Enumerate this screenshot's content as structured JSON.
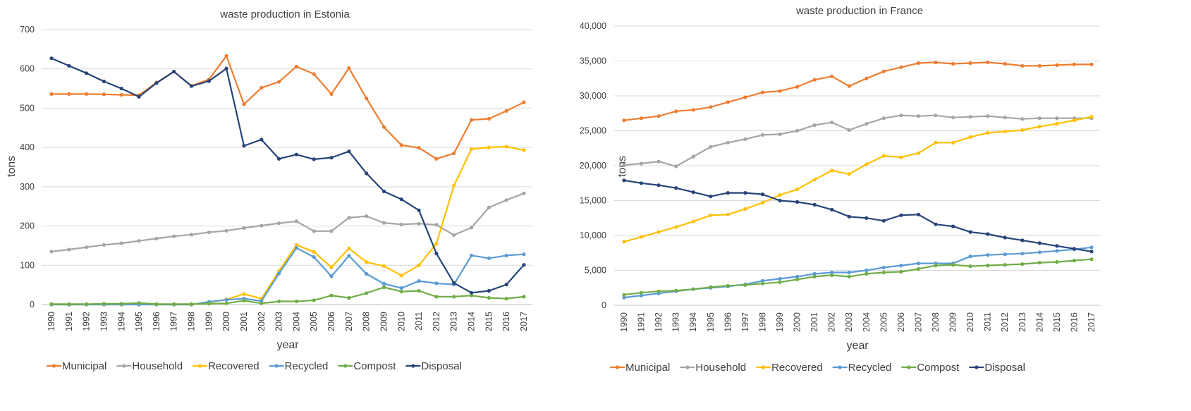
{
  "chart_data": [
    {
      "type": "line",
      "title": "waste production in Estonia",
      "xlabel": "year",
      "ylabel": "tons",
      "ylim": [
        0,
        700
      ],
      "yticks": [
        0,
        100,
        200,
        300,
        400,
        500,
        600,
        700
      ],
      "ytick_labels": [
        "0",
        "100",
        "200",
        "300",
        "400",
        "500",
        "600",
        "700"
      ],
      "grid": true,
      "legend": "bottom",
      "x": [
        "1990",
        "1991",
        "1992",
        "1993",
        "1994",
        "1995",
        "1996",
        "1997",
        "1998",
        "1999",
        "2000",
        "2001",
        "2002",
        "2003",
        "2004",
        "2005",
        "2006",
        "2007",
        "2008",
        "2009",
        "2010",
        "2011",
        "2012",
        "2013",
        "2014",
        "2015",
        "2016",
        "2017"
      ],
      "series": [
        {
          "name": "Municipal",
          "color": "#ed7d31",
          "values": [
            536,
            536,
            536,
            535,
            534,
            533,
            565,
            593,
            557,
            573,
            633,
            510,
            552,
            567,
            606,
            587,
            536,
            602,
            525,
            452,
            406,
            399,
            371,
            385,
            470,
            473,
            493,
            515
          ]
        },
        {
          "name": "Household",
          "color": "#a5a5a5",
          "values": [
            135,
            140,
            146,
            152,
            156,
            162,
            168,
            174,
            178,
            184,
            188,
            195,
            201,
            207,
            212,
            187,
            187,
            221,
            225,
            208,
            204,
            206,
            203,
            177,
            196,
            247,
            266,
            283
          ]
        },
        {
          "name": "Recovered",
          "color": "#ffc000",
          "values": [
            0,
            0,
            0,
            0,
            0,
            0,
            0,
            0,
            0,
            5,
            13,
            27,
            15,
            85,
            152,
            134,
            95,
            143,
            108,
            98,
            74,
            100,
            155,
            303,
            396,
            400,
            402,
            393
          ]
        },
        {
          "name": "Recycled",
          "color": "#5b9bd5",
          "values": [
            0,
            0,
            0,
            0,
            0,
            0,
            0,
            0,
            0,
            7,
            12,
            15,
            9,
            79,
            144,
            121,
            72,
            124,
            78,
            53,
            42,
            60,
            54,
            51,
            125,
            118,
            125,
            128
          ]
        },
        {
          "name": "Compost",
          "color": "#70ad47",
          "values": [
            1,
            1,
            1,
            2,
            2,
            4,
            1,
            1,
            1,
            2,
            3,
            10,
            3,
            8,
            8,
            11,
            23,
            17,
            29,
            44,
            33,
            35,
            20,
            20,
            23,
            17,
            15,
            20
          ]
        },
        {
          "name": "Disposal",
          "color": "#264478",
          "values": [
            627,
            608,
            589,
            568,
            550,
            529,
            564,
            593,
            556,
            569,
            601,
            404,
            420,
            371,
            382,
            370,
            374,
            390,
            334,
            288,
            268,
            240,
            130,
            55,
            30,
            35,
            51,
            101
          ]
        }
      ]
    },
    {
      "type": "line",
      "title": "waste production in France",
      "xlabel": "year",
      "ylabel": "tons",
      "ylim": [
        0,
        40000
      ],
      "yticks": [
        0,
        5000,
        10000,
        15000,
        20000,
        25000,
        30000,
        35000,
        40000
      ],
      "ytick_labels": [
        "0",
        "5,000",
        "10,000",
        "15,000",
        "20,000",
        "25,000",
        "30,000",
        "35,000",
        "40,000"
      ],
      "grid": true,
      "legend": "bottom",
      "x": [
        "1990",
        "1991",
        "1992",
        "1993",
        "1994",
        "1995",
        "1996",
        "1997",
        "1998",
        "1999",
        "2000",
        "2001",
        "2002",
        "2003",
        "2004",
        "2005",
        "2006",
        "2007",
        "2008",
        "2009",
        "2010",
        "2011",
        "2012",
        "2013",
        "2014",
        "2015",
        "2016",
        "2017"
      ],
      "series": [
        {
          "name": "Municipal",
          "color": "#ed7d31",
          "values": [
            26500,
            26800,
            27100,
            27800,
            28000,
            28400,
            29100,
            29800,
            30500,
            30700,
            31300,
            32300,
            32800,
            31400,
            32500,
            33500,
            34100,
            34700,
            34800,
            34600,
            34700,
            34800,
            34600,
            34300,
            34300,
            34400,
            34500,
            34500
          ]
        },
        {
          "name": "Household",
          "color": "#a5a5a5",
          "values": [
            20100,
            20300,
            20600,
            19900,
            21300,
            22700,
            23300,
            23800,
            24400,
            24500,
            25000,
            25800,
            26200,
            25100,
            26000,
            26800,
            27200,
            27100,
            27200,
            26900,
            27000,
            27100,
            26900,
            26700,
            26800,
            26800,
            26800,
            26800
          ]
        },
        {
          "name": "Recovered",
          "color": "#ffc000",
          "values": [
            9100,
            9800,
            10500,
            11200,
            12000,
            12900,
            13000,
            13800,
            14700,
            15800,
            16600,
            18000,
            19300,
            18800,
            20200,
            21400,
            21200,
            21800,
            23300,
            23300,
            24100,
            24700,
            24900,
            25100,
            25600,
            26000,
            26500,
            27000
          ]
        },
        {
          "name": "Recycled",
          "color": "#5b9bd5",
          "values": [
            1100,
            1400,
            1700,
            2000,
            2300,
            2500,
            2700,
            3000,
            3500,
            3800,
            4100,
            4500,
            4700,
            4700,
            5000,
            5400,
            5700,
            6000,
            6000,
            6000,
            7000,
            7200,
            7300,
            7400,
            7600,
            7800,
            8000,
            8300
          ]
        },
        {
          "name": "Compost",
          "color": "#70ad47",
          "values": [
            1500,
            1800,
            2000,
            2100,
            2300,
            2600,
            2800,
            2900,
            3100,
            3300,
            3700,
            4100,
            4300,
            4100,
            4500,
            4700,
            4800,
            5200,
            5700,
            5800,
            5600,
            5700,
            5800,
            5900,
            6100,
            6200,
            6400,
            6600
          ]
        },
        {
          "name": "Disposal",
          "color": "#264478",
          "values": [
            17900,
            17500,
            17200,
            16800,
            16200,
            15600,
            16100,
            16100,
            15900,
            15000,
            14800,
            14400,
            13700,
            12700,
            12500,
            12100,
            12900,
            13000,
            11600,
            11300,
            10500,
            10200,
            9700,
            9300,
            8900,
            8500,
            8100,
            7700
          ]
        }
      ]
    }
  ]
}
